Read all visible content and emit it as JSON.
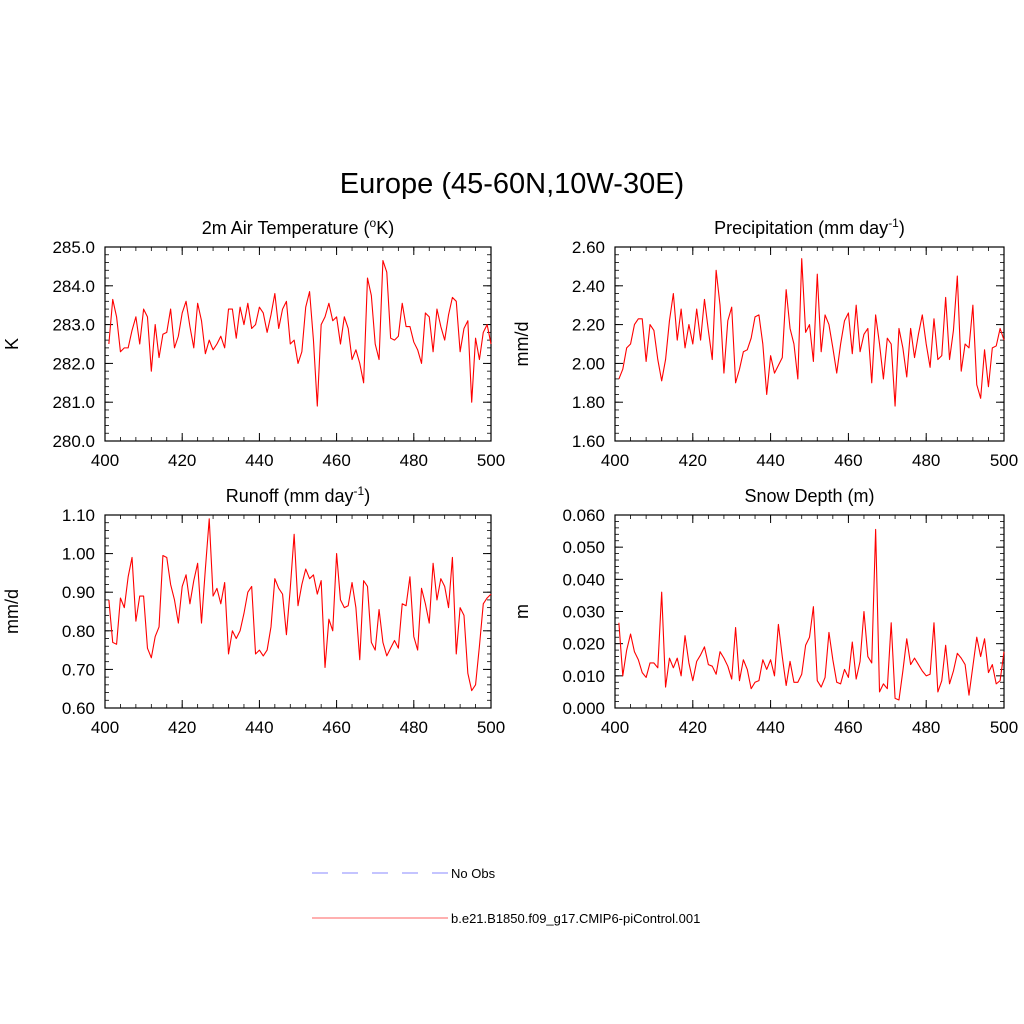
{
  "figure": {
    "title": "Europe (45-60N,10W-30E)",
    "colors": {
      "model": "#ff0000",
      "obs": "#a0a0ff",
      "axis": "#000000"
    }
  },
  "legend": {
    "position": "bottom-center",
    "entries": [
      {
        "name": "No Obs",
        "style": "dashed",
        "color": "#a0a0ff"
      },
      {
        "name": "b.e21.B1850.f09_g17.CMIP6-piControl.001",
        "style": "solid",
        "color": "#ff8080"
      }
    ]
  },
  "chart_data": [
    {
      "type": "line",
      "title_main": "2m Air Temperature (",
      "title_sup": "o",
      "title_end": "K)",
      "xlabel": "",
      "ylabel": "K",
      "xlim": [
        400,
        500
      ],
      "ylim": [
        280,
        285
      ],
      "xticks": [
        400,
        420,
        440,
        460,
        480,
        500
      ],
      "xtick_labels": [
        "400",
        "420",
        "440",
        "460",
        "480",
        "500"
      ],
      "yticks": [
        280,
        281,
        282,
        283,
        284,
        285
      ],
      "ytick_labels": [
        "280.0",
        "281.0",
        "282.0",
        "283.0",
        "284.0",
        "285.0"
      ],
      "x_start": 401,
      "series": [
        {
          "name": "b.e21.B1850.f09_g17.CMIP6-piControl.001",
          "values": [
            282.5,
            283.65,
            283.2,
            282.3,
            282.4,
            282.4,
            282.85,
            283.2,
            282.5,
            283.4,
            283.2,
            281.8,
            283.0,
            282.15,
            282.75,
            282.8,
            283.4,
            282.4,
            282.7,
            283.3,
            283.6,
            282.95,
            282.4,
            283.55,
            283.1,
            282.25,
            282.6,
            282.35,
            282.5,
            282.7,
            282.4,
            283.4,
            283.4,
            282.65,
            283.45,
            283.0,
            283.55,
            282.9,
            283.0,
            283.45,
            283.3,
            282.8,
            283.25,
            283.8,
            282.9,
            283.4,
            283.6,
            282.5,
            282.6,
            282.0,
            282.3,
            283.45,
            283.85,
            282.6,
            280.9,
            283.0,
            283.2,
            283.55,
            283.1,
            283.2,
            282.5,
            283.2,
            282.9,
            282.1,
            282.35,
            282.0,
            281.5,
            284.2,
            283.75,
            282.5,
            282.1,
            284.65,
            284.35,
            282.65,
            282.6,
            282.7,
            283.55,
            282.95,
            282.95,
            282.55,
            282.35,
            282.0,
            283.3,
            283.2,
            282.3,
            283.4,
            282.95,
            282.6,
            283.25,
            283.7,
            283.6,
            282.3,
            282.9,
            283.1,
            281.0,
            282.65,
            282.1,
            282.8,
            283.0,
            282.5
          ]
        }
      ]
    },
    {
      "type": "line",
      "title_main": "Precipitation (mm day",
      "title_sup": "-1",
      "title_end": ")",
      "xlabel": "",
      "ylabel": "mm/d",
      "xlim": [
        400,
        500
      ],
      "ylim": [
        1.6,
        2.6
      ],
      "xticks": [
        400,
        420,
        440,
        460,
        480,
        500
      ],
      "xtick_labels": [
        "400",
        "420",
        "440",
        "460",
        "480",
        "500"
      ],
      "yticks": [
        1.6,
        1.8,
        2.0,
        2.2,
        2.4,
        2.6
      ],
      "ytick_labels": [
        "1.60",
        "1.80",
        "2.00",
        "2.20",
        "2.40",
        "2.60"
      ],
      "x_start": 401,
      "series": [
        {
          "name": "b.e21.B1850.f09_g17.CMIP6-piControl.001",
          "values": [
            1.92,
            1.97,
            2.08,
            2.1,
            2.2,
            2.23,
            2.23,
            2.01,
            2.2,
            2.17,
            2.02,
            1.91,
            2.02,
            2.22,
            2.36,
            2.12,
            2.28,
            2.08,
            2.2,
            2.1,
            2.28,
            2.12,
            2.33,
            2.17,
            2.02,
            2.48,
            2.3,
            1.95,
            2.22,
            2.29,
            1.9,
            1.97,
            2.06,
            2.07,
            2.13,
            2.24,
            2.25,
            2.1,
            1.84,
            2.04,
            1.95,
            1.99,
            2.03,
            2.38,
            2.18,
            2.1,
            1.92,
            2.54,
            2.16,
            2.2,
            2.01,
            2.46,
            2.06,
            2.25,
            2.2,
            2.08,
            1.95,
            2.1,
            2.22,
            2.26,
            2.05,
            2.3,
            2.06,
            2.15,
            2.18,
            1.9,
            2.25,
            2.1,
            1.92,
            2.13,
            2.1,
            1.78,
            2.18,
            2.08,
            1.93,
            2.18,
            2.03,
            2.15,
            2.25,
            2.1,
            1.98,
            2.23,
            2.02,
            2.04,
            2.34,
            2.02,
            2.17,
            2.45,
            1.96,
            2.1,
            2.08,
            2.3,
            1.89,
            1.82,
            2.07,
            1.88,
            2.08,
            2.09,
            2.18,
            2.12
          ]
        }
      ]
    },
    {
      "type": "line",
      "title_main": "Runoff (mm day",
      "title_sup": "-1",
      "title_end": ")",
      "xlabel": "",
      "ylabel": "mm/d",
      "xlim": [
        400,
        500
      ],
      "ylim": [
        0.6,
        1.1
      ],
      "xticks": [
        400,
        420,
        440,
        460,
        480,
        500
      ],
      "xtick_labels": [
        "400",
        "420",
        "440",
        "460",
        "480",
        "500"
      ],
      "yticks": [
        0.6,
        0.7,
        0.8,
        0.9,
        1.0,
        1.1
      ],
      "ytick_labels": [
        "0.60",
        "0.70",
        "0.80",
        "0.90",
        "1.00",
        "1.10"
      ],
      "x_start": 401,
      "series": [
        {
          "name": "b.e21.B1850.f09_g17.CMIP6-piControl.001",
          "values": [
            0.88,
            0.77,
            0.765,
            0.885,
            0.86,
            0.94,
            0.99,
            0.825,
            0.89,
            0.89,
            0.755,
            0.73,
            0.785,
            0.81,
            0.995,
            0.99,
            0.92,
            0.88,
            0.82,
            0.915,
            0.945,
            0.87,
            0.93,
            0.975,
            0.82,
            0.96,
            1.09,
            0.89,
            0.91,
            0.87,
            0.925,
            0.74,
            0.8,
            0.78,
            0.8,
            0.845,
            0.9,
            0.915,
            0.74,
            0.75,
            0.735,
            0.75,
            0.81,
            0.935,
            0.91,
            0.895,
            0.79,
            0.91,
            1.05,
            0.865,
            0.92,
            0.96,
            0.935,
            0.945,
            0.895,
            0.93,
            0.705,
            0.83,
            0.8,
            1.0,
            0.88,
            0.86,
            0.865,
            0.925,
            0.86,
            0.725,
            0.93,
            0.915,
            0.77,
            0.75,
            0.855,
            0.77,
            0.735,
            0.755,
            0.775,
            0.755,
            0.87,
            0.865,
            0.94,
            0.785,
            0.75,
            0.91,
            0.87,
            0.82,
            0.975,
            0.88,
            0.935,
            0.915,
            0.86,
            0.99,
            0.74,
            0.86,
            0.84,
            0.69,
            0.645,
            0.66,
            0.76,
            0.87,
            0.885,
            0.895
          ]
        }
      ]
    },
    {
      "type": "line",
      "title_main": "Snow Depth (m)",
      "title_sup": "",
      "title_end": "",
      "xlabel": "",
      "ylabel": "m",
      "xlim": [
        400,
        500
      ],
      "ylim": [
        0.0,
        0.06
      ],
      "xticks": [
        400,
        420,
        440,
        460,
        480,
        500
      ],
      "xtick_labels": [
        "400",
        "420",
        "440",
        "460",
        "480",
        "500"
      ],
      "yticks": [
        0.0,
        0.01,
        0.02,
        0.03,
        0.04,
        0.05,
        0.06
      ],
      "ytick_labels": [
        "0.000",
        "0.010",
        "0.020",
        "0.030",
        "0.040",
        "0.050",
        "0.060"
      ],
      "x_start": 401,
      "series": [
        {
          "name": "b.e21.B1850.f09_g17.CMIP6-piControl.001",
          "values": [
            0.0265,
            0.01,
            0.018,
            0.023,
            0.0175,
            0.015,
            0.011,
            0.0095,
            0.014,
            0.014,
            0.0125,
            0.036,
            0.0065,
            0.0155,
            0.0125,
            0.0155,
            0.01,
            0.0225,
            0.014,
            0.0085,
            0.0145,
            0.0165,
            0.019,
            0.0135,
            0.013,
            0.0105,
            0.0175,
            0.0155,
            0.013,
            0.009,
            0.025,
            0.0085,
            0.015,
            0.012,
            0.006,
            0.008,
            0.0085,
            0.015,
            0.012,
            0.015,
            0.01,
            0.026,
            0.016,
            0.007,
            0.0145,
            0.008,
            0.008,
            0.0105,
            0.0195,
            0.022,
            0.0315,
            0.0085,
            0.0065,
            0.0095,
            0.0235,
            0.015,
            0.008,
            0.0075,
            0.012,
            0.0095,
            0.0205,
            0.009,
            0.0145,
            0.03,
            0.016,
            0.014,
            0.0555,
            0.005,
            0.0075,
            0.006,
            0.0265,
            0.003,
            0.0025,
            0.0115,
            0.0215,
            0.0135,
            0.0155,
            0.0135,
            0.0115,
            0.01,
            0.0105,
            0.0265,
            0.005,
            0.0085,
            0.0195,
            0.0075,
            0.0115,
            0.017,
            0.0155,
            0.0135,
            0.004,
            0.013,
            0.022,
            0.016,
            0.0215,
            0.011,
            0.0135,
            0.0075,
            0.0085,
            0.0175
          ]
        }
      ]
    }
  ]
}
